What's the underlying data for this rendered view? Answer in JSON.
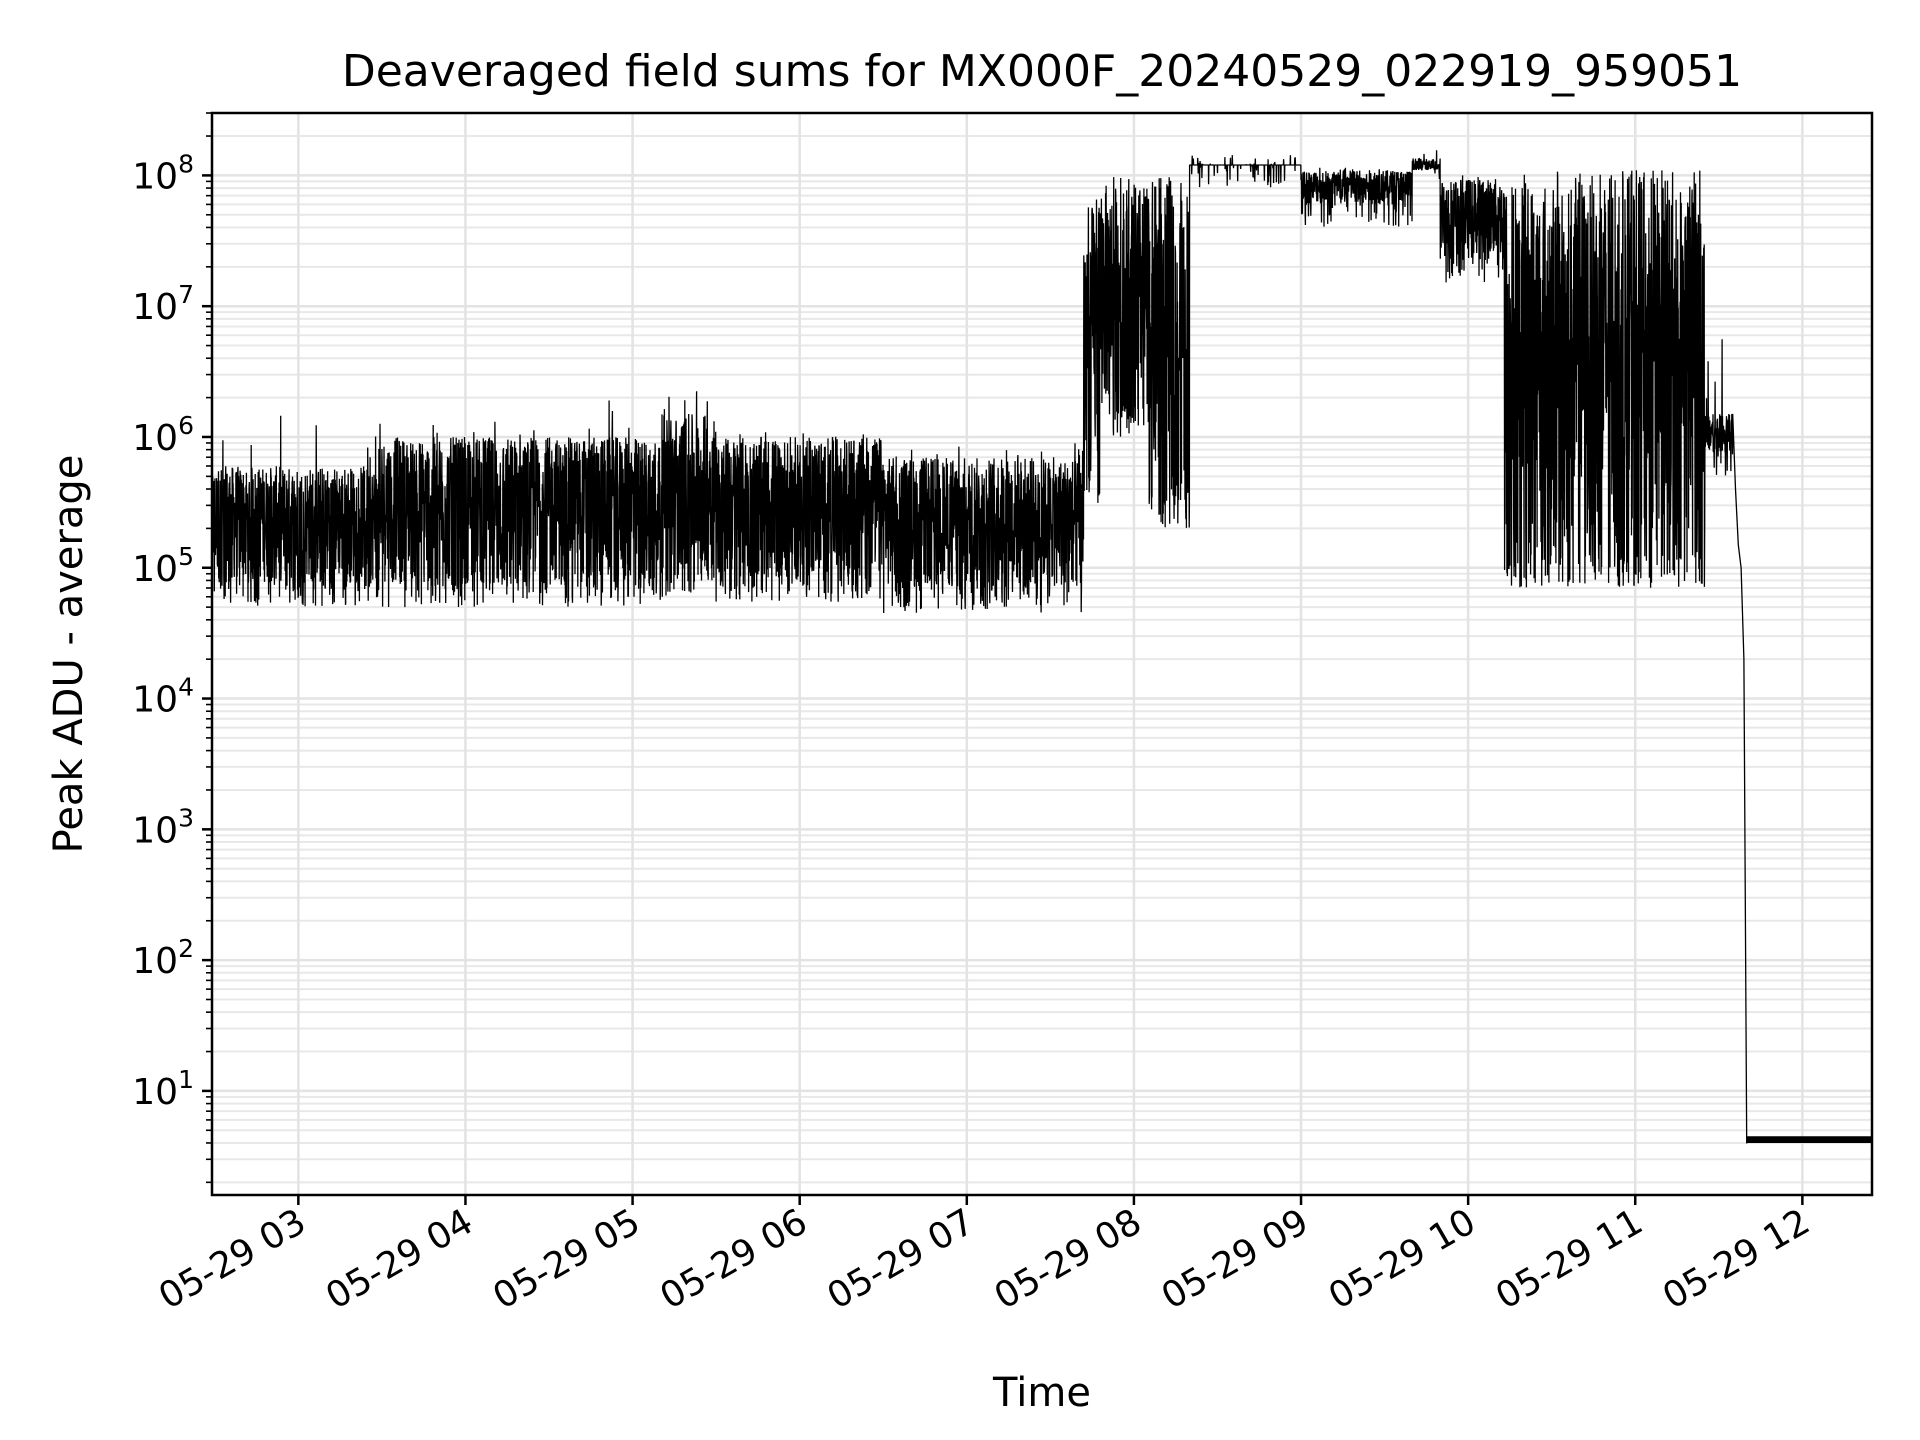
{
  "chart_data": {
    "type": "line",
    "title": "Deaveraged field sums for MX000F_20240529_022919_959051",
    "xlabel": "Time",
    "ylabel": "Peak ADU - average",
    "yscale": "log",
    "grid": true,
    "xlim": [
      "05-29 02:29",
      "05-29 12:25"
    ],
    "ylim": [
      1.6,
      300000000
    ],
    "x_ticks": [
      {
        "value": "05-29 03:00",
        "label": "05-29 03"
      },
      {
        "value": "05-29 04:00",
        "label": "05-29 04"
      },
      {
        "value": "05-29 05:00",
        "label": "05-29 05"
      },
      {
        "value": "05-29 06:00",
        "label": "05-29 06"
      },
      {
        "value": "05-29 07:00",
        "label": "05-29 07"
      },
      {
        "value": "05-29 08:00",
        "label": "05-29 08"
      },
      {
        "value": "05-29 09:00",
        "label": "05-29 09"
      },
      {
        "value": "05-29 10:00",
        "label": "05-29 10"
      },
      {
        "value": "05-29 11:00",
        "label": "05-29 11"
      },
      {
        "value": "05-29 12:00",
        "label": "05-29 12"
      }
    ],
    "y_ticks": [
      {
        "value": 10,
        "base": "10",
        "exp": "1"
      },
      {
        "value": 100,
        "base": "10",
        "exp": "2"
      },
      {
        "value": 1000,
        "base": "10",
        "exp": "3"
      },
      {
        "value": 10000,
        "base": "10",
        "exp": "4"
      },
      {
        "value": 100000,
        "base": "10",
        "exp": "5"
      },
      {
        "value": 1000000,
        "base": "10",
        "exp": "6"
      },
      {
        "value": 10000000,
        "base": "10",
        "exp": "7"
      },
      {
        "value": 100000000,
        "base": "10",
        "exp": "8"
      }
    ],
    "series": [
      {
        "color": "#000000",
        "regimes": [
          {
            "start": "05-29 02:29",
            "end": "05-29 03:30",
            "low": 50000,
            "high": 600000,
            "peak": 1500000
          },
          {
            "start": "05-29 03:30",
            "end": "05-29 05:10",
            "low": 50000,
            "high": 1000000,
            "peak": 2200000
          },
          {
            "start": "05-29 05:10",
            "end": "05-29 05:30",
            "low": 60000,
            "high": 1500000,
            "peak": 2300000
          },
          {
            "start": "05-29 05:30",
            "end": "05-29 06:30",
            "low": 55000,
            "high": 1000000,
            "peak": 1100000
          },
          {
            "start": "05-29 06:30",
            "end": "05-29 07:42",
            "low": 45000,
            "high": 700000,
            "peak": 900000
          },
          {
            "start": "05-29 07:42",
            "end": "05-29 07:48",
            "low": 300000,
            "high": 60000000,
            "peak": 80000000
          },
          {
            "start": "05-29 07:48",
            "end": "05-29 08:05",
            "low": 1000000,
            "high": 85000000,
            "peak": 100000000
          },
          {
            "start": "05-29 08:05",
            "end": "05-29 08:20",
            "low": 200000,
            "high": 90000000,
            "peak": 100000000
          },
          {
            "start": "05-29 08:20",
            "end": "05-29 09:00",
            "low": 80000000,
            "high": 120000000,
            "peak": 125000000
          },
          {
            "start": "05-29 09:00",
            "end": "05-29 09:40",
            "low": 40000000,
            "high": 110000000,
            "peak": 115000000
          },
          {
            "start": "05-29 09:40",
            "end": "05-29 09:50",
            "low": 90000000,
            "high": 110000000,
            "peak": 110000000
          },
          {
            "start": "05-29 09:50",
            "end": "05-29 10:13",
            "low": 15000000,
            "high": 95000000,
            "peak": 100000000
          },
          {
            "start": "05-29 10:13",
            "end": "05-29 11:25",
            "low": 70000,
            "high": 100000000,
            "peak": 110000000
          },
          {
            "start": "05-29 11:25",
            "end": "05-29 11:35",
            "low": 500000,
            "high": 1500000,
            "peak": 25000000
          }
        ],
        "tail": [
          {
            "x": "05-29 11:35",
            "y": 1500000
          },
          {
            "x": "05-29 11:36",
            "y": 400000
          },
          {
            "x": "05-29 11:37",
            "y": 150000
          },
          {
            "x": "05-29 11:38",
            "y": 100000
          },
          {
            "x": "05-29 11:39",
            "y": 20000
          },
          {
            "x": "05-29 11:40",
            "y": 4
          },
          {
            "x": "05-29 12:25",
            "y": 4
          }
        ],
        "tail_ripple": [
          4,
          4.5
        ]
      }
    ]
  }
}
